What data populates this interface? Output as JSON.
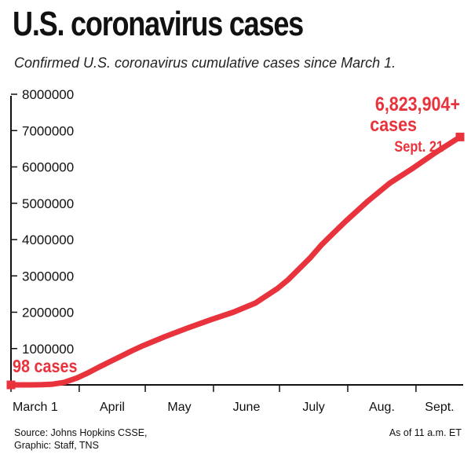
{
  "header": {
    "title": "U.S. coronavirus cases",
    "subtitle": "Confirmed U.S. coronavirus cumulative cases since March 1."
  },
  "footer": {
    "source_line1": "Source: Johns Hopkins CSSE,",
    "source_line2": "Graphic: Staff, TNS",
    "as_of": "As of 11 a.m. ET"
  },
  "annotations": {
    "start_label": "98 cases",
    "end_value": "6,823,904+",
    "end_unit": "cases",
    "end_date": "Sept. 21"
  },
  "colors": {
    "line": "#e8323c",
    "axis": "#111111"
  },
  "chart_data": {
    "type": "line",
    "title": "U.S. coronavirus cases",
    "subtitle": "Confirmed U.S. coronavirus cumulative cases since March 1.",
    "xlabel": "",
    "ylabel": "",
    "ylim": [
      0,
      8000000
    ],
    "yticks": [
      1000000,
      2000000,
      3000000,
      4000000,
      5000000,
      6000000,
      7000000,
      8000000
    ],
    "ytick_labels": [
      "1000000",
      "2000000",
      "3000000",
      "4000000",
      "5000000",
      "6000000",
      "7000000",
      "8000000"
    ],
    "xlim": [
      "2020-03-01",
      "2020-09-21"
    ],
    "xtick_labels": [
      "March 1",
      "April",
      "May",
      "June",
      "July",
      "Aug.",
      "Sept."
    ],
    "xtick_dates": [
      "2020-03-01",
      "2020-04-01",
      "2020-05-01",
      "2020-06-01",
      "2020-07-01",
      "2020-08-01",
      "2020-09-01"
    ],
    "grid": false,
    "series": [
      {
        "x": [
          "2020-03-01",
          "2020-03-10",
          "2020-03-15",
          "2020-03-20",
          "2020-03-25",
          "2020-03-31",
          "2020-04-05",
          "2020-04-10",
          "2020-04-15",
          "2020-04-20",
          "2020-04-25",
          "2020-04-30",
          "2020-05-10",
          "2020-05-20",
          "2020-05-31",
          "2020-06-10",
          "2020-06-20",
          "2020-06-30",
          "2020-07-05",
          "2020-07-10",
          "2020-07-15",
          "2020-07-20",
          "2020-07-25",
          "2020-07-31",
          "2020-08-10",
          "2020-08-20",
          "2020-08-31",
          "2020-09-10",
          "2020-09-21"
        ],
        "y": [
          98,
          1000,
          3500,
          19000,
          68000,
          190000,
          330000,
          490000,
          640000,
          790000,
          940000,
          1080000,
          1330000,
          1560000,
          1800000,
          2000000,
          2250000,
          2650000,
          2900000,
          3200000,
          3500000,
          3850000,
          4150000,
          4500000,
          5050000,
          5550000,
          5980000,
          6400000,
          6823904
        ]
      }
    ]
  }
}
